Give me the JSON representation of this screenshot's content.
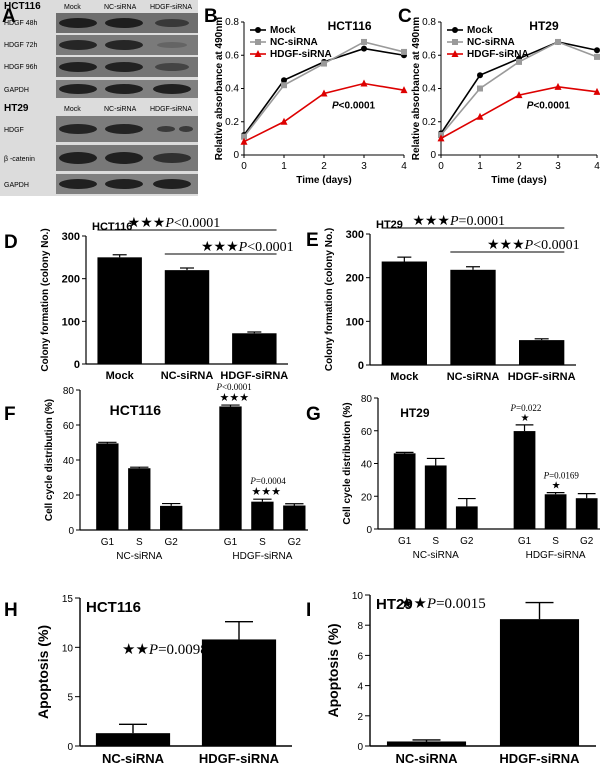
{
  "panels": {
    "A": {
      "letter": "A",
      "hct116": {
        "cell_line": "HCT116",
        "columns": [
          "Mock",
          "NC-siRNA",
          "HDGF-siRNA"
        ],
        "rows": [
          "HDGF 48h",
          "HDGF 72h",
          "HDGF 96h",
          "GAPDH"
        ]
      },
      "ht29": {
        "cell_line": "HT29",
        "columns": [
          "Mock",
          "NC-siRNA",
          "HDGF-siRNA"
        ],
        "rows": [
          "HDGF",
          "β -catenin",
          "GAPDH"
        ]
      }
    },
    "F": {
      "letter": "F",
      "title": "HCT116",
      "ylabel": "Cell cycle distribution (%)",
      "groups": [
        "NC-siRNA",
        "HDGF-siRNA"
      ],
      "phases": [
        "G1",
        "S",
        "G2"
      ],
      "ann1_p": "P<0.0001",
      "ann1_stars": "★★★",
      "ann2_p": "P=0.0004",
      "ann2_stars": "★★★"
    },
    "G": {
      "letter": "G",
      "title": "HT29",
      "ylabel": "Cell cycle distribution (%)",
      "groups": [
        "NC-siRNA",
        "HDGF-siRNA"
      ],
      "phases": [
        "G1",
        "S",
        "G2"
      ],
      "ann1_p": "P=0.022",
      "ann1_stars": "★",
      "ann2_p": "P=0.0169",
      "ann2_stars": "★"
    }
  },
  "chart_data": [
    {
      "panel": "B",
      "type": "line",
      "title": "HCT116",
      "xlabel": "Time (days)",
      "ylabel": "Relative absorbance at 490nm",
      "x": [
        0,
        1,
        2,
        3,
        4
      ],
      "xlim": [
        0,
        4
      ],
      "ylim": [
        0,
        0.8
      ],
      "yticks": [
        "0",
        "0.2",
        "0.4",
        "0.6",
        "0.8"
      ],
      "series": [
        {
          "name": "Mock",
          "color": "#000000",
          "marker": "circle",
          "values": [
            0.12,
            0.45,
            0.56,
            0.64,
            0.6
          ]
        },
        {
          "name": "NC-siRNA",
          "color": "#9a9a9a",
          "marker": "square",
          "values": [
            0.11,
            0.42,
            0.55,
            0.68,
            0.62
          ]
        },
        {
          "name": "HDGF-siRNA",
          "color": "#dd0000",
          "marker": "triangle",
          "values": [
            0.08,
            0.2,
            0.37,
            0.43,
            0.39
          ]
        }
      ],
      "annotation": "P<0.0001"
    },
    {
      "panel": "C",
      "type": "line",
      "title": "HT29",
      "xlabel": "Time (days)",
      "ylabel": "Relative absorbance at 490nm",
      "x": [
        0,
        1,
        2,
        3,
        4
      ],
      "xlim": [
        0,
        4
      ],
      "ylim": [
        0,
        0.8
      ],
      "yticks": [
        "0",
        "0.2",
        "0.4",
        "0.6",
        "0.8"
      ],
      "series": [
        {
          "name": "Mock",
          "color": "#000000",
          "marker": "circle",
          "values": [
            0.13,
            0.48,
            0.58,
            0.68,
            0.63
          ]
        },
        {
          "name": "NC-siRNA",
          "color": "#9a9a9a",
          "marker": "square",
          "values": [
            0.12,
            0.4,
            0.56,
            0.68,
            0.59
          ]
        },
        {
          "name": "HDGF-siRNA",
          "color": "#dd0000",
          "marker": "triangle",
          "values": [
            0.1,
            0.23,
            0.36,
            0.41,
            0.38
          ]
        }
      ],
      "annotation": "P<0.0001"
    },
    {
      "panel": "D",
      "type": "bar",
      "title": "HCT116",
      "ylabel": "Colony formation (colony No.)",
      "categories": [
        "Mock",
        "NC-siRNA",
        "HDGF-siRNA"
      ],
      "values": [
        250,
        220,
        72
      ],
      "errors": [
        6,
        5,
        3
      ],
      "ylim": [
        0,
        300
      ],
      "yticks": [
        "0",
        "100",
        "200",
        "300"
      ],
      "comparisons": [
        {
          "stars": "★★★",
          "p": "P<0.0001",
          "from": 0,
          "to": 2
        },
        {
          "stars": "★★★",
          "p": "P<0.0001",
          "from": 1,
          "to": 2
        }
      ]
    },
    {
      "panel": "E",
      "type": "bar",
      "title": "HT29",
      "ylabel": "Colony formation (colony No.)",
      "categories": [
        "Mock",
        "NC-siRNA",
        "HDGF-siRNA"
      ],
      "values": [
        237,
        218,
        57
      ],
      "errors": [
        10,
        7,
        3
      ],
      "ylim": [
        0,
        300
      ],
      "yticks": [
        "0",
        "100",
        "200",
        "300"
      ],
      "comparisons": [
        {
          "stars": "★★★",
          "p": "P=0.0001",
          "from": 0,
          "to": 2
        },
        {
          "stars": "★★★",
          "p": "P<0.0001",
          "from": 1,
          "to": 2
        }
      ]
    },
    {
      "panel": "F",
      "type": "bar",
      "title": "HCT116",
      "ylabel": "Cell cycle distribution (%)",
      "groups": [
        "NC-siRNA",
        "HDGF-siRNA"
      ],
      "categories": [
        "G1",
        "S",
        "G2"
      ],
      "series": [
        {
          "name": "NC-siRNA",
          "values": [
            49.5,
            35.3,
            13.8
          ],
          "errors": [
            0.6,
            0.6,
            1.3
          ]
        },
        {
          "name": "HDGF-siRNA",
          "values": [
            70.6,
            16.2,
            14.0
          ],
          "errors": [
            0.8,
            1.4,
            1.0
          ]
        }
      ],
      "ylim": [
        0,
        80
      ],
      "yticks": [
        "0",
        "20",
        "40",
        "60",
        "80"
      ]
    },
    {
      "panel": "G",
      "type": "bar",
      "title": "HT29",
      "ylabel": "Cell cycle distribution (%)",
      "groups": [
        "NC-siRNA",
        "HDGF-siRNA"
      ],
      "categories": [
        "G1",
        "S",
        "G2"
      ],
      "series": [
        {
          "name": "NC-siRNA",
          "values": [
            46.2,
            38.8,
            13.8
          ],
          "errors": [
            0.6,
            4.3,
            4.8
          ]
        },
        {
          "name": "HDGF-siRNA",
          "values": [
            59.8,
            21.2,
            18.8
          ],
          "errors": [
            3.8,
            1.0,
            2.8
          ]
        }
      ],
      "ylim": [
        0,
        80
      ],
      "yticks": [
        "0",
        "20",
        "40",
        "60",
        "80"
      ]
    },
    {
      "panel": "H",
      "type": "bar",
      "title": "HCT116",
      "ylabel": "Apoptosis (%)",
      "categories": [
        "NC-siRNA",
        "HDGF-siRNA"
      ],
      "values": [
        1.3,
        10.8
      ],
      "errors": [
        0.9,
        1.8
      ],
      "ylim": [
        0,
        15
      ],
      "yticks": [
        "0",
        "5",
        "10",
        "15"
      ],
      "annotation": "★★ P=0.0098"
    },
    {
      "panel": "I",
      "type": "bar",
      "title": "HT29",
      "ylabel": "Apoptosis (%)",
      "categories": [
        "NC-siRNA",
        "HDGF-siRNA"
      ],
      "values": [
        0.3,
        8.4
      ],
      "errors": [
        0.1,
        1.1
      ],
      "ylim": [
        0,
        10
      ],
      "yticks": [
        "0",
        "2",
        "4",
        "6",
        "8",
        "10"
      ],
      "annotation": "★★ P=0.0015"
    }
  ]
}
